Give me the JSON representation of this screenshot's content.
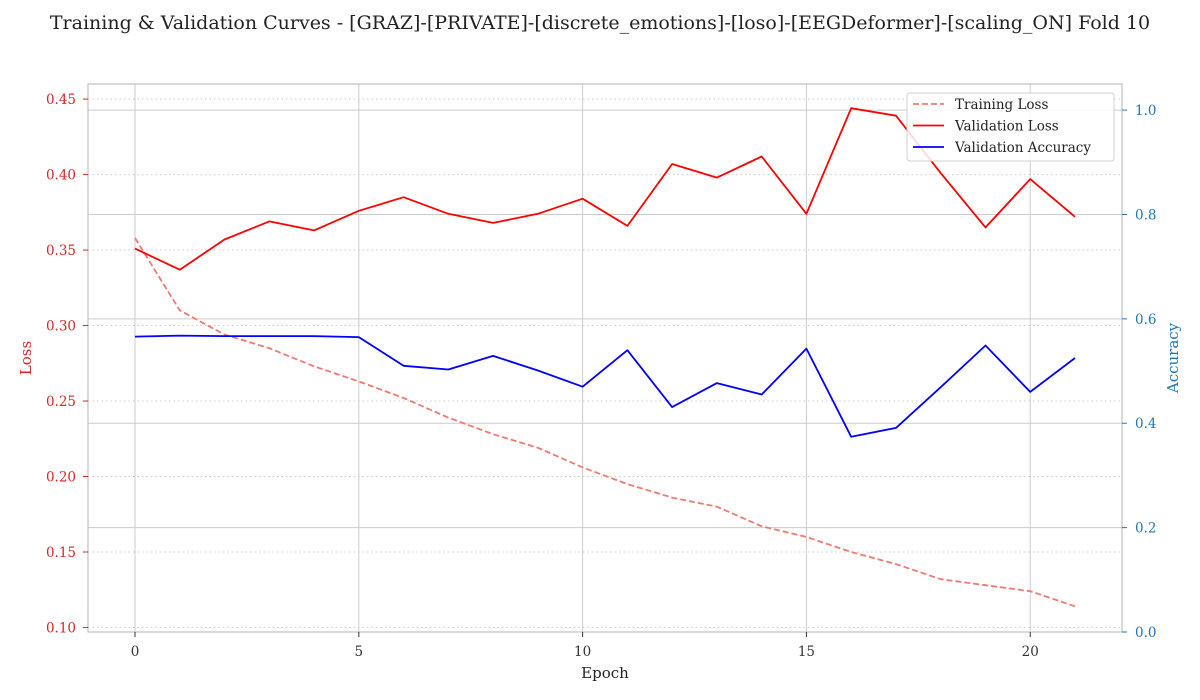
{
  "chart_data": {
    "type": "line",
    "title": "Training & Validation Curves - [GRAZ]-[PRIVATE]-[discrete_emotions]-[loso]-[EEGDeformer]-[scaling_ON] Fold 10",
    "xlabel": "Epoch",
    "ylabel_left": "Loss",
    "ylabel_right": "Accuracy",
    "x": [
      0,
      1,
      2,
      3,
      4,
      5,
      6,
      7,
      8,
      9,
      10,
      11,
      12,
      13,
      14,
      15,
      16,
      17,
      18,
      19,
      20,
      21
    ],
    "xlim": [
      -1.05,
      22.05
    ],
    "ylim_left": [
      0.097,
      0.46
    ],
    "ylim_right": [
      0.0,
      1.05
    ],
    "x_ticks": [
      0,
      5,
      10,
      15,
      20
    ],
    "y_ticks_left": [
      "0.10",
      "0.15",
      "0.20",
      "0.25",
      "0.30",
      "0.35",
      "0.40",
      "0.45"
    ],
    "y_ticks_right": [
      "0.0",
      "0.2",
      "0.4",
      "0.6",
      "0.8",
      "1.0"
    ],
    "grid": true,
    "legend_position": "top-right",
    "series": [
      {
        "name": "Training Loss",
        "axis": "left",
        "color": "#ee7a72",
        "style": "dashed",
        "values": [
          0.358,
          0.31,
          0.294,
          0.285,
          0.273,
          0.263,
          0.252,
          0.239,
          0.228,
          0.219,
          0.206,
          0.195,
          0.186,
          0.18,
          0.167,
          0.16,
          0.15,
          0.142,
          0.132,
          0.128,
          0.124,
          0.114
        ]
      },
      {
        "name": "Validation Loss",
        "axis": "left",
        "color": "#ff0000",
        "style": "solid",
        "values": [
          0.351,
          0.337,
          0.357,
          0.369,
          0.363,
          0.376,
          0.385,
          0.374,
          0.368,
          0.374,
          0.384,
          0.366,
          0.407,
          0.398,
          0.412,
          0.374,
          0.444,
          0.439,
          0.401,
          0.365,
          0.397,
          0.372
        ]
      },
      {
        "name": "Validation Accuracy",
        "axis": "right",
        "color": "#0000ff",
        "style": "solid",
        "values": [
          0.566,
          0.568,
          0.567,
          0.567,
          0.567,
          0.565,
          0.51,
          0.503,
          0.529,
          0.501,
          0.47,
          0.54,
          0.431,
          0.477,
          0.455,
          0.543,
          0.374,
          0.391,
          0.469,
          0.549,
          0.46,
          0.525
        ]
      }
    ]
  },
  "colors": {
    "left_axis": "#d62728",
    "right_axis": "#1f77b4",
    "grid": "#cccccc",
    "frame": "#c0c0c0"
  }
}
